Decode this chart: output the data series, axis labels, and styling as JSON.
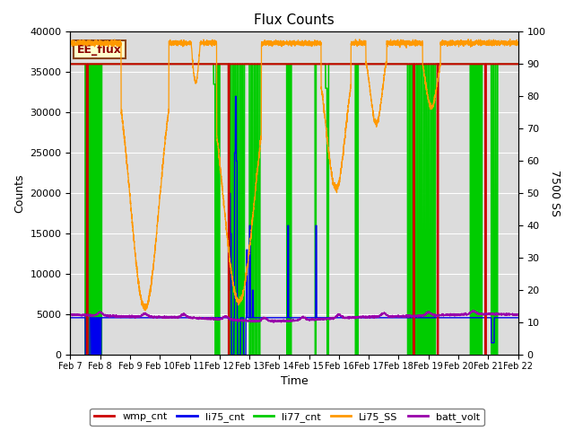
{
  "title": "Flux Counts",
  "xlabel": "Time",
  "ylabel_left": "Counts",
  "ylabel_right": "7500 SS",
  "annotation": "EE_flux",
  "ylim_left": [
    0,
    40000
  ],
  "ylim_right": [
    0,
    100
  ],
  "xtick_labels": [
    "Feb 7",
    "Feb 8",
    "Feb 9",
    "Feb 10",
    "Feb 11",
    "Feb 12",
    "Feb 13",
    "Feb 14",
    "Feb 15",
    "Feb 16",
    "Feb 17",
    "Feb 18",
    "Feb 19",
    "Feb 20",
    "Feb 21",
    "Feb 22"
  ],
  "bg_color": "#dcdcdc",
  "colors": {
    "wmp_cnt": "#cc0000",
    "li75_cnt": "#0000ee",
    "li77_cnt": "#00cc00",
    "Li75_SS": "#ff9900",
    "batt_volt": "#9900aa"
  },
  "wmp_cnt_level": 36000,
  "batt_volt_level": 4700,
  "li77_cnt_level": 36000,
  "li75_cnt_level": 4600
}
